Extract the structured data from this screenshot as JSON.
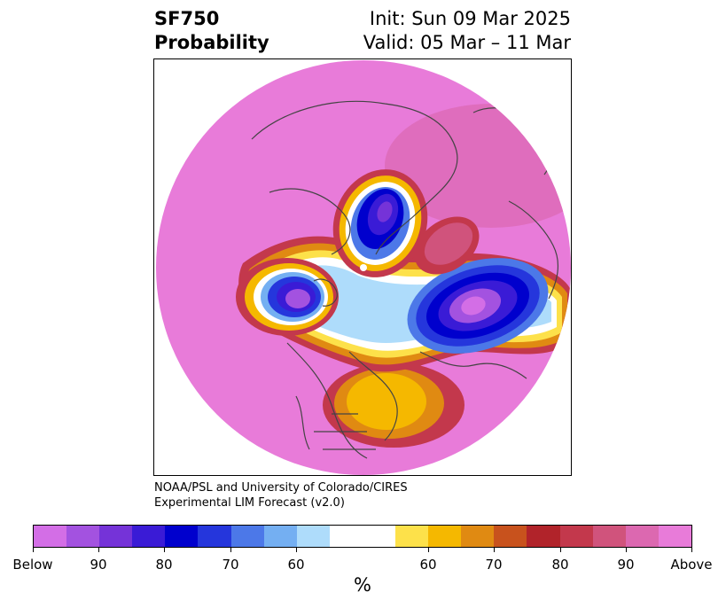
{
  "header": {
    "title_line1": "SF750",
    "title_line2": "Probability",
    "init_text": "Init: Sun 09 Mar 2025",
    "valid_text": "Valid: 05 Mar – 11 Mar"
  },
  "credit": {
    "line1": "NOAA/PSL and University of Colorado/CIRES",
    "line2": "Experimental LIM Forecast (v2.0)"
  },
  "colorbar": {
    "colors": [
      "#d36ee6",
      "#a352e0",
      "#7533d8",
      "#3a1bd6",
      "#0000cd",
      "#2536dc",
      "#4c78e8",
      "#74aff2",
      "#aedcfb",
      "#ffffff",
      "#ffffff",
      "#fde14a",
      "#f5b800",
      "#e08a12",
      "#c8521d",
      "#b1232a",
      "#c3384c",
      "#d0537c",
      "#dc68b0",
      "#e87bd9"
    ],
    "labels": [
      "Below",
      "90",
      "80",
      "70",
      "60",
      "60",
      "70",
      "80",
      "90",
      "Above"
    ],
    "unit": "%"
  },
  "map": {
    "background_color": "#e87bd9",
    "coastline_color": "#444444"
  }
}
